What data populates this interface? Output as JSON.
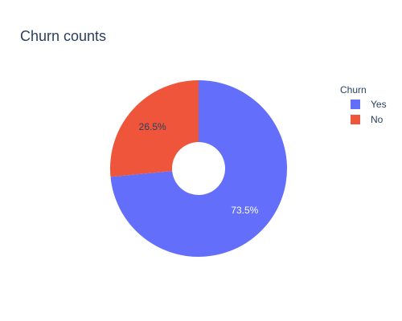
{
  "chart_data": {
    "type": "pie",
    "title": "Churn counts",
    "hole": true,
    "legend_title": "Churn",
    "legend_position": "right",
    "slices": [
      {
        "label": "Yes",
        "percent": 73.5,
        "percent_label": "73.5%",
        "color": "#636efa",
        "text_color": "#ffffff"
      },
      {
        "label": "No",
        "percent": 26.5,
        "percent_label": "26.5%",
        "color": "#ef553b",
        "text_color": "#2a3f5f"
      }
    ]
  }
}
